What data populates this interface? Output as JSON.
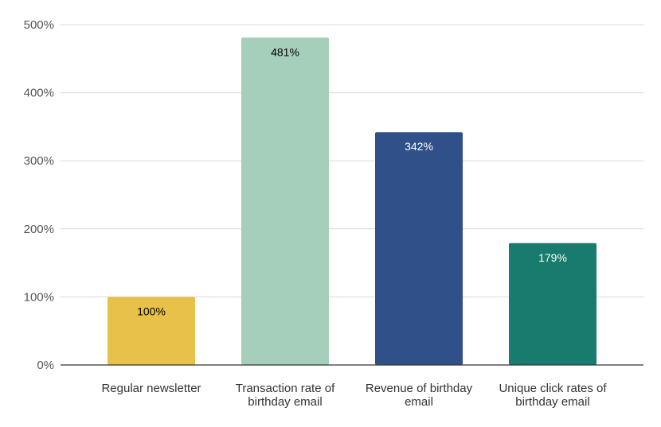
{
  "chart_data": {
    "type": "bar",
    "title": "",
    "xlabel": "",
    "ylabel": "",
    "categories": [
      [
        "Regular newsletter"
      ],
      [
        "Transaction rate of",
        "birthday email"
      ],
      [
        "Revenue of birthday",
        "email"
      ],
      [
        "Unique click rates of",
        "birthday email"
      ]
    ],
    "values": [
      100,
      481,
      342,
      179
    ],
    "value_labels": [
      "100%",
      "481%",
      "342%",
      "179%"
    ],
    "colors": [
      "#e8c14a",
      "#a6cfbb",
      "#30508a",
      "#197b6e"
    ],
    "label_colors": [
      "#000000",
      "#000000",
      "#ffffff",
      "#ffffff"
    ],
    "ylim": [
      0,
      500
    ],
    "yticks": [
      0,
      100,
      200,
      300,
      400,
      500
    ],
    "ytick_labels": [
      "0%",
      "100%",
      "200%",
      "300%",
      "400%",
      "500%"
    ],
    "grid": true,
    "legend": "none"
  }
}
